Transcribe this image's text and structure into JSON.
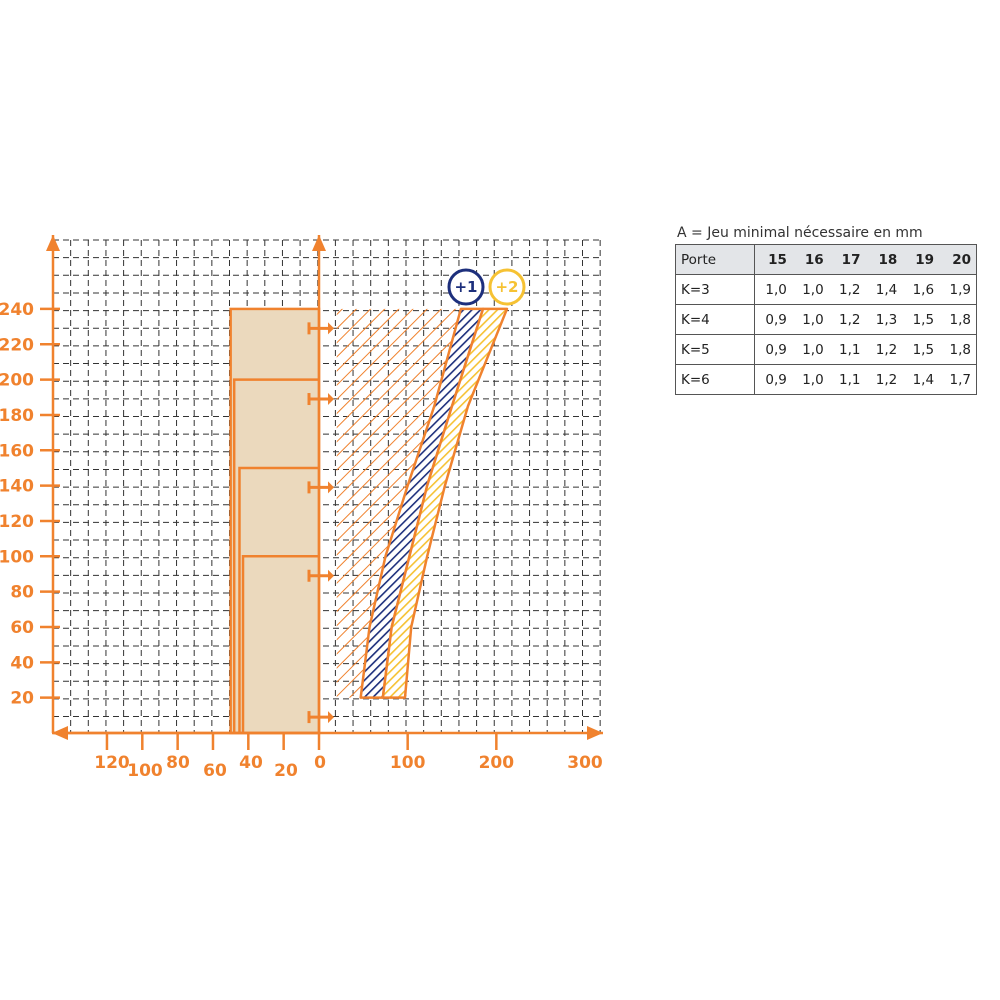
{
  "chart_data": {
    "type": "area",
    "y_ticks": [
      "240",
      "220",
      "200",
      "180",
      "160",
      "140",
      "120",
      "100",
      "80",
      "60",
      "40",
      "20"
    ],
    "x_ticks_left": [
      "120",
      "100",
      "80",
      "60",
      "40",
      "20",
      "0"
    ],
    "x_ticks_right": [
      "100",
      "200",
      "300"
    ],
    "ylim": [
      0,
      240
    ],
    "xlim_right": [
      0,
      300
    ],
    "xlim_left": [
      0,
      140
    ],
    "door_thickness_steps": [
      {
        "height_max": 240,
        "thickness": 50
      },
      {
        "height_max": 200,
        "thickness": 48
      },
      {
        "height_max": 150,
        "thickness": 45
      },
      {
        "height_max": 100,
        "thickness": 43
      }
    ],
    "hinge_marker_heights": [
      229,
      189,
      139,
      89,
      9
    ],
    "series": [
      {
        "name": "+1",
        "color": "#1d2f7c",
        "inner": [
          [
            47,
            20
          ],
          [
            57,
            60
          ],
          [
            75,
            100
          ],
          [
            100,
            140
          ],
          [
            130,
            185
          ],
          [
            160,
            240
          ]
        ],
        "outer": [
          [
            72,
            20
          ],
          [
            82,
            60
          ],
          [
            102,
            100
          ],
          [
            122,
            140
          ],
          [
            150,
            185
          ],
          [
            185,
            240
          ]
        ]
      },
      {
        "name": "+2",
        "color": "#f6c233",
        "inner": [
          [
            72,
            20
          ],
          [
            82,
            60
          ],
          [
            102,
            100
          ],
          [
            122,
            140
          ],
          [
            150,
            185
          ],
          [
            185,
            240
          ]
        ],
        "outer": [
          [
            97,
            20
          ],
          [
            104,
            60
          ],
          [
            122,
            100
          ],
          [
            142,
            140
          ],
          [
            168,
            185
          ],
          [
            212,
            240
          ]
        ]
      }
    ],
    "hatched_zone": {
      "x_from": 20,
      "y_from": 20,
      "y_to": 240
    }
  },
  "colors": {
    "orange": "#f0822e",
    "beige": "#ebd9bd",
    "navy": "#1d2f7c",
    "yellow": "#f6c233",
    "grid": "#333333"
  },
  "table": {
    "caption": "A = Jeu minimal nécessaire en mm",
    "header": [
      "Porte",
      "15",
      "16",
      "17",
      "18",
      "19",
      "20"
    ],
    "rows": [
      [
        "K=3",
        "1,0",
        "1,0",
        "1,2",
        "1,4",
        "1,6",
        "1,9"
      ],
      [
        "K=4",
        "0,9",
        "1,0",
        "1,2",
        "1,3",
        "1,5",
        "1,8"
      ],
      [
        "K=5",
        "0,9",
        "1,0",
        "1,1",
        "1,2",
        "1,5",
        "1,8"
      ],
      [
        "K=6",
        "0,9",
        "1,0",
        "1,1",
        "1,2",
        "1,4",
        "1,7"
      ]
    ]
  }
}
